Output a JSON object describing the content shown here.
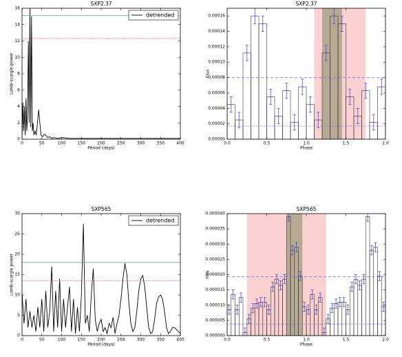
{
  "chart_data": [
    {
      "type": "line",
      "title": "SXP2.37",
      "xlabel": "Period (days)",
      "ylabel": "Lomb-scargle power",
      "x": [
        0,
        2,
        4,
        6,
        8,
        10,
        12,
        14,
        16,
        18,
        20,
        22,
        24,
        26,
        28,
        30,
        33,
        36,
        39,
        42,
        45,
        48,
        52,
        56,
        60,
        65,
        70,
        75,
        80,
        90,
        100,
        120,
        150,
        200,
        250,
        300,
        350,
        400
      ],
      "series": [
        {
          "name": "detrended",
          "color": "#000000",
          "values": [
            0,
            4.5,
            1,
            4,
            0.5,
            5,
            1,
            3,
            12,
            2,
            16,
            1.5,
            15,
            1,
            2,
            0.5,
            1,
            0.5,
            2,
            3.6,
            2,
            0.5,
            0.3,
            0.6,
            0.5,
            0.2,
            0.3,
            0.1,
            0.2,
            0.1,
            0.2,
            0.1,
            0.1,
            0.1,
            0.1,
            0.1,
            0.1,
            0.1
          ]
        }
      ],
      "hlines": [
        {
          "value": 15.1,
          "color": "#5cb87a",
          "style": "solid"
        },
        {
          "value": 12.3,
          "color": "#e05555",
          "style": "dotted"
        }
      ],
      "xlim": [
        0,
        400
      ],
      "xticks": [
        0,
        50,
        100,
        150,
        200,
        250,
        300,
        350,
        400
      ],
      "ylim": [
        0,
        16
      ],
      "yticks": [
        0,
        2,
        4,
        6,
        8,
        10,
        12,
        14,
        16
      ],
      "legend": "upper right"
    },
    {
      "type": "histogram",
      "title": "SXP2.37",
      "xlabel": "Phase",
      "ylabel": "Flux",
      "bins": [
        0,
        0.1,
        0.2,
        0.3,
        0.4,
        0.5,
        0.6,
        0.7,
        0.8,
        0.9,
        1.0,
        1.1,
        1.2,
        1.3,
        1.4,
        1.5,
        1.6,
        1.7,
        1.8,
        1.9,
        2.0
      ],
      "values": [
        4.5e-05,
        2.5e-05,
        0.000112,
        0.00016,
        0.00015,
        5.5e-05,
        3e-05,
        6.3e-05,
        2.2e-05,
        6.8e-05,
        4.5e-05,
        2.5e-05,
        0.000112,
        0.00016,
        0.00015,
        5.5e-05,
        3e-05,
        6.3e-05,
        2.2e-05,
        6.8e-05
      ],
      "errors": [
        1e-05,
        1e-05,
        1e-05,
        1e-05,
        1e-05,
        1e-05,
        1e-05,
        1e-05,
        1e-05,
        1e-05,
        1e-05,
        1e-05,
        1e-05,
        1e-05,
        1e-05,
        1e-05,
        1e-05,
        1e-05,
        1e-05,
        1e-05
      ],
      "color": "#333333",
      "error_color": "#4a4acc",
      "spans": [
        {
          "range": [
            1.1,
            1.75
          ],
          "color": "#fbd0d0"
        },
        {
          "range": [
            1.2,
            1.45
          ],
          "color": "#9a9a7a"
        }
      ],
      "hlines": [
        {
          "value": 8e-05,
          "color": "#6a6aee",
          "style": "dashed"
        },
        {
          "value": 1.7e-05,
          "color": "#6a6aee",
          "style": "dotted"
        }
      ],
      "xlim": [
        0,
        2
      ],
      "xticks": [
        {
          "value": 0,
          "label": "0.0"
        },
        {
          "value": 0.5,
          "label": "0.5"
        },
        {
          "value": 1,
          "label": "1.0"
        },
        {
          "value": 1.5,
          "label": "1.5"
        },
        {
          "value": 2,
          "label": "2.0"
        }
      ],
      "ylim": [
        0,
        0.00017
      ],
      "yticks": [
        {
          "value": 0,
          "label": "0.00000"
        },
        {
          "value": 2e-05,
          "label": "0.00002"
        },
        {
          "value": 4e-05,
          "label": "0.00004"
        },
        {
          "value": 6e-05,
          "label": "0.00006"
        },
        {
          "value": 8e-05,
          "label": "0.00008"
        },
        {
          "value": 0.0001,
          "label": "0.00010"
        },
        {
          "value": 0.00012,
          "label": "0.00012"
        },
        {
          "value": 0.00014,
          "label": "0.00014"
        },
        {
          "value": 0.00016,
          "label": "0.00016"
        }
      ]
    },
    {
      "type": "line",
      "title": "SXP565",
      "xlabel": "Period (days)",
      "ylabel": "Lomb-scargle power",
      "x": [
        0,
        5,
        10,
        15,
        20,
        25,
        30,
        35,
        40,
        45,
        50,
        55,
        60,
        65,
        70,
        75,
        80,
        85,
        90,
        95,
        100,
        105,
        110,
        115,
        120,
        125,
        130,
        135,
        140,
        145,
        150,
        155,
        160,
        165,
        170,
        175,
        180,
        185,
        190,
        195,
        200,
        205,
        210,
        215,
        220,
        225,
        230,
        235,
        240,
        245,
        250,
        255,
        260,
        265,
        270,
        275,
        280,
        285,
        290,
        295,
        300,
        305,
        310,
        315,
        320,
        325,
        330,
        335,
        340,
        345,
        350,
        355,
        360,
        365,
        370,
        375,
        380,
        385,
        390,
        395,
        400
      ],
      "series": [
        {
          "name": "detrended",
          "color": "#000000",
          "values": [
            10.5,
            3,
            9,
            2,
            6,
            2,
            5,
            1,
            7,
            2,
            9,
            1,
            11,
            2,
            6,
            17,
            1,
            11,
            2,
            14,
            1,
            9,
            2,
            7,
            12,
            1,
            9,
            0.5,
            7,
            1,
            10,
            27.5,
            3,
            5,
            1,
            10,
            16.5,
            4,
            1,
            3,
            4,
            1,
            2,
            0.5,
            3,
            2,
            4.5,
            0.5,
            3,
            5,
            9,
            14,
            17.8,
            15,
            8,
            3,
            1,
            2,
            6,
            11,
            14,
            14.8,
            12,
            7,
            2,
            0.5,
            1,
            4,
            8,
            9.5,
            10,
            9,
            6,
            2,
            0.5,
            1,
            2,
            2,
            1.5,
            1,
            0.5
          ]
        }
      ],
      "hlines": [
        {
          "value": 18,
          "color": "#5cb87a",
          "style": "solid"
        },
        {
          "value": 13.5,
          "color": "#e05555",
          "style": "dotted"
        }
      ],
      "xlim": [
        0,
        400
      ],
      "xticks": [
        0,
        50,
        100,
        150,
        200,
        250,
        300,
        350,
        400
      ],
      "ylim": [
        0,
        30
      ],
      "yticks": [
        0,
        5,
        10,
        15,
        20,
        25,
        30
      ],
      "legend": "upper right"
    },
    {
      "type": "histogram",
      "title": "SXP565",
      "xlabel": "Phase",
      "ylabel": "Flux",
      "bins": [
        0,
        0.05,
        0.1,
        0.15,
        0.2,
        0.25,
        0.3,
        0.35,
        0.4,
        0.45,
        0.5,
        0.55,
        0.6,
        0.65,
        0.7,
        0.75,
        0.8,
        0.85,
        0.9,
        0.95,
        1.0,
        1.05,
        1.1,
        1.15,
        1.2,
        1.25,
        1.3,
        1.35,
        1.4,
        1.45,
        1.5,
        1.55,
        1.6,
        1.65,
        1.7,
        1.75,
        1.8,
        1.85,
        1.9,
        1.95,
        2.0
      ],
      "values": [
        8.5e-06,
        1.35e-05,
        8.5e-06,
        1.25e-05,
        1e-06,
        5.5e-06,
        9e-06,
        1.05e-05,
        1.1e-05,
        1.1e-05,
        8.5e-06,
        1.6e-05,
        1.85e-05,
        1.65e-05,
        1.85e-05,
        3.9e-05,
        2.8e-05,
        2.9e-05,
        1.95e-05,
        9.5e-06,
        8.5e-06,
        1.35e-05,
        8.5e-06,
        1.25e-05,
        1e-06,
        5.5e-06,
        9e-06,
        1.05e-05,
        1.1e-05,
        1.1e-05,
        8.5e-06,
        1.6e-05,
        1.85e-05,
        1.65e-05,
        1.85e-05,
        3.9e-05,
        2.8e-05,
        2.9e-05,
        1.95e-05,
        9.5e-06
      ],
      "errors": [
        1.5e-06,
        1.5e-06,
        1.5e-06,
        1.5e-06,
        1.5e-06,
        1.5e-06,
        1.5e-06,
        1.5e-06,
        1.5e-06,
        1.5e-06,
        1.5e-06,
        1.5e-06,
        1.5e-06,
        1.5e-06,
        1.5e-06,
        1.5e-06,
        1.5e-06,
        1.5e-06,
        1.5e-06,
        1.5e-06,
        1.5e-06,
        1.5e-06,
        1.5e-06,
        1.5e-06,
        1.5e-06,
        1.5e-06,
        1.5e-06,
        1.5e-06,
        1.5e-06,
        1.5e-06,
        1.5e-06,
        1.5e-06,
        1.5e-06,
        1.5e-06,
        1.5e-06,
        1.5e-06,
        1.5e-06,
        1.5e-06,
        1.5e-06,
        1.5e-06
      ],
      "color": "#333333",
      "error_color": "#4a4acc",
      "spans": [
        {
          "range": [
            0.25,
            1.25
          ],
          "color": "#fbd0d0"
        },
        {
          "range": [
            0.75,
            0.95
          ],
          "color": "#9a9a7a"
        }
      ],
      "hlines": [
        {
          "value": 1.93e-05,
          "color": "#6a6aee",
          "style": "dashed"
        },
        {
          "value": 3.8e-06,
          "color": "#6a6aee",
          "style": "dotted"
        }
      ],
      "xlim": [
        0,
        2
      ],
      "xticks": [
        {
          "value": 0,
          "label": "0.0"
        },
        {
          "value": 0.5,
          "label": "0.5"
        },
        {
          "value": 1,
          "label": "1.0"
        },
        {
          "value": 1.5,
          "label": "1.5"
        },
        {
          "value": 2,
          "label": "2.0"
        }
      ],
      "ylim": [
        0,
        4e-05
      ],
      "yticks": [
        {
          "value": 0,
          "label": "0.000000"
        },
        {
          "value": 5e-06,
          "label": "0.000005"
        },
        {
          "value": 1e-05,
          "label": "0.000010"
        },
        {
          "value": 1.5e-05,
          "label": "0.000015"
        },
        {
          "value": 2e-05,
          "label": "0.000020"
        },
        {
          "value": 2.5e-05,
          "label": "0.000025"
        },
        {
          "value": 3e-05,
          "label": "0.000030"
        },
        {
          "value": 3.5e-05,
          "label": "0.000035"
        },
        {
          "value": 4e-05,
          "label": "0.000040"
        }
      ]
    }
  ]
}
